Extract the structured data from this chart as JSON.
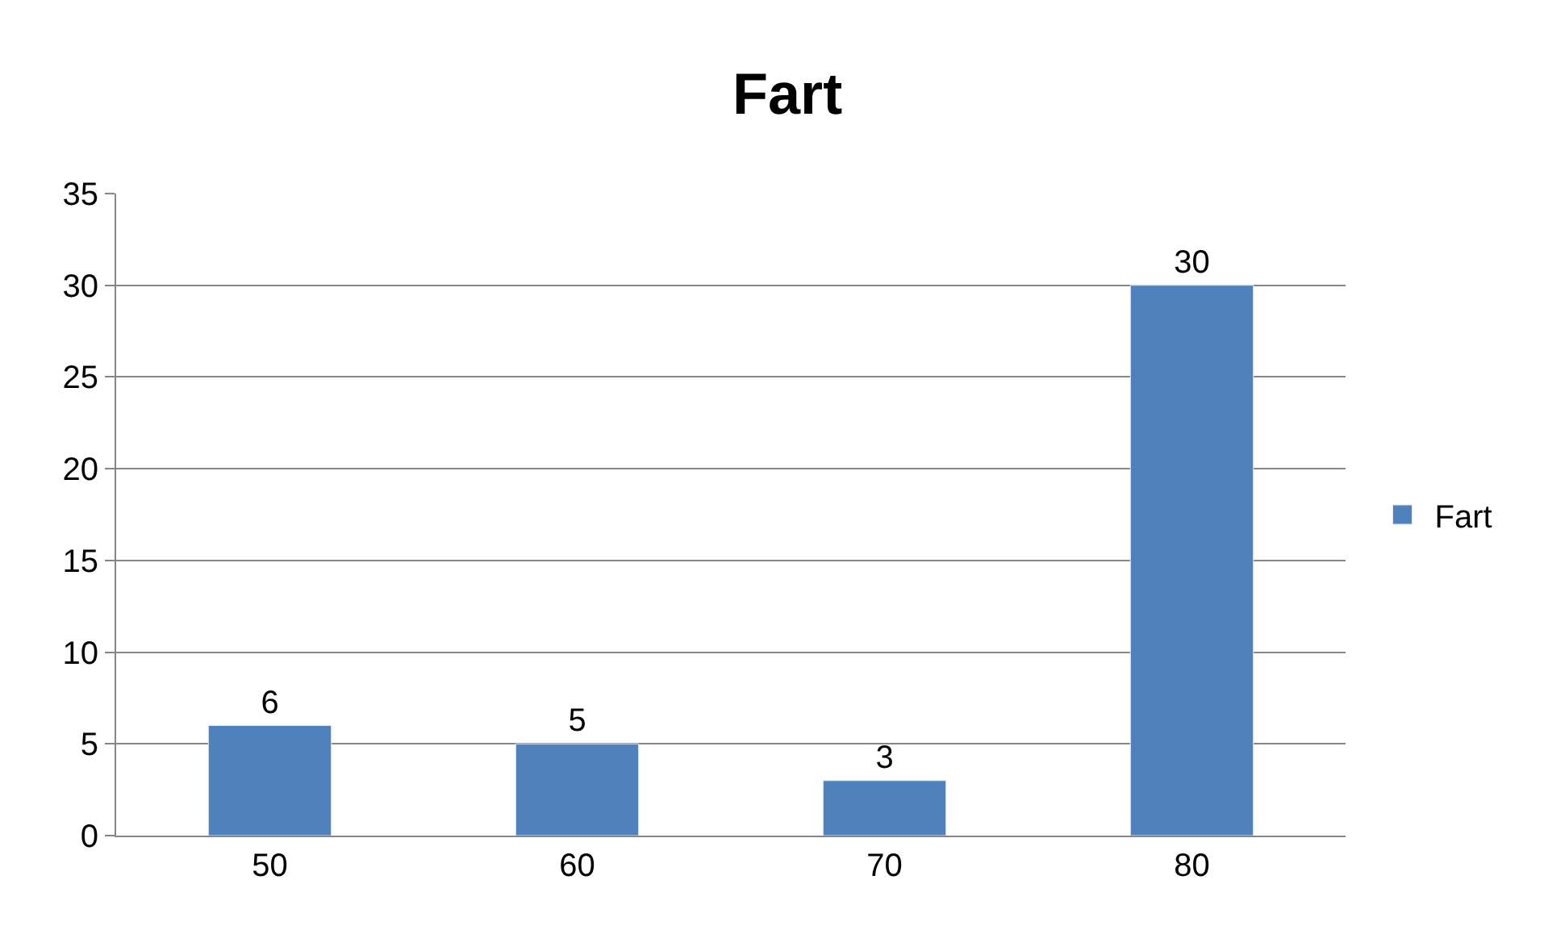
{
  "chart_data": {
    "type": "bar",
    "title": "Fart",
    "categories": [
      "50",
      "60",
      "70",
      "80"
    ],
    "series": [
      {
        "name": "Fart",
        "color": "#4f81bd",
        "values": [
          6,
          5,
          3,
          30
        ]
      }
    ],
    "ylim": [
      0,
      35
    ],
    "yticks": [
      0,
      5,
      10,
      15,
      20,
      25,
      30,
      35
    ],
    "grid": "y",
    "legend": "right",
    "data_labels": true
  }
}
